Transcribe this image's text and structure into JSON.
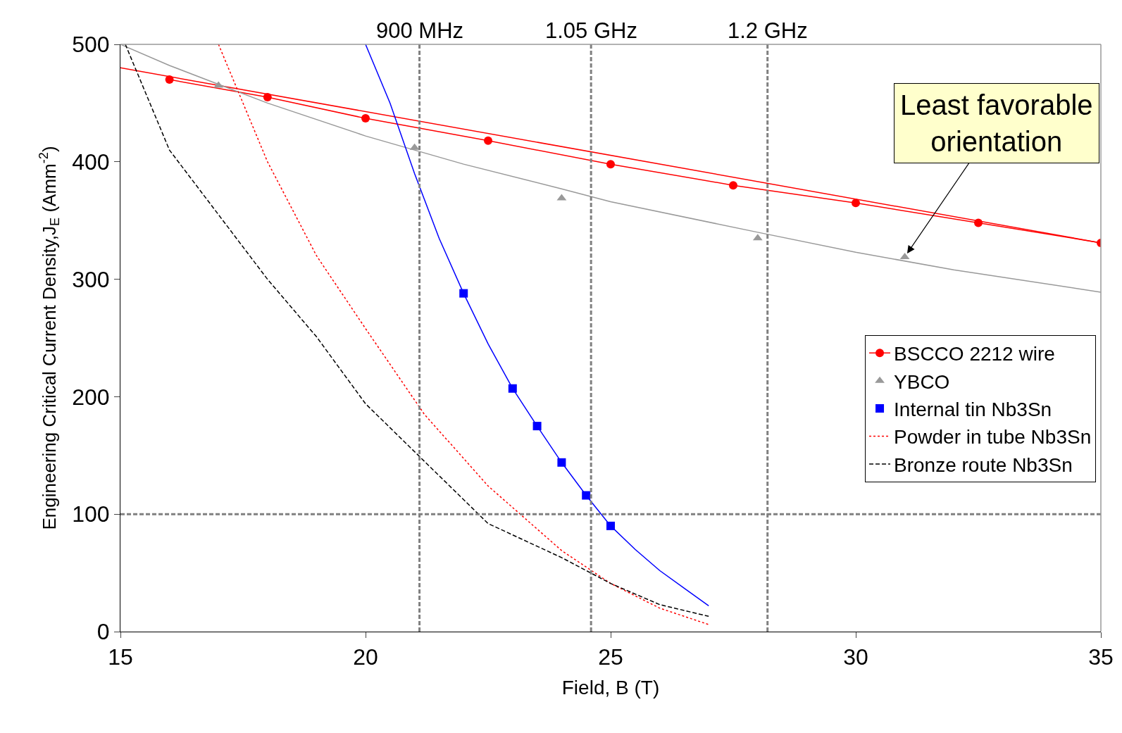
{
  "chart_data": {
    "type": "line",
    "xlabel": "Field, B (T)",
    "ylabel": "Engineering Critical Current Density,J$_{E}$ (Amm$^{-2}$)",
    "xlim": [
      15,
      35
    ],
    "xticks": [
      15,
      20,
      25,
      30,
      35
    ],
    "ylim": [
      0,
      500
    ],
    "yticks": [
      0,
      100,
      200,
      300,
      400,
      500
    ],
    "legend": "right",
    "series": [
      {
        "color": "#ff0000",
        "line_style": "solid",
        "x": [
          15,
          35
        ],
        "values": [
          480,
          331
        ]
      },
      {
        "name": "BSCCO 2212 wire",
        "color": "#ff0000",
        "line_style": "solid",
        "marker": "circle",
        "x": [
          16,
          18,
          20,
          22.5,
          25,
          27.5,
          30,
          32.5,
          35
        ],
        "values": [
          470,
          455,
          437,
          418,
          398,
          380,
          365,
          348,
          331
        ]
      },
      {
        "color": "#999999",
        "line_style": "solid",
        "x": [
          15,
          16,
          17,
          18,
          20,
          22,
          24,
          25,
          28,
          30,
          32,
          35
        ],
        "values": [
          500,
          482,
          466,
          450,
          422,
          398,
          377,
          366,
          340,
          323,
          308,
          289
        ]
      },
      {
        "type": "scatter",
        "name": "YBCO",
        "color": "#999999",
        "marker": "triangle",
        "x": [
          17,
          21,
          24,
          28,
          31
        ],
        "values": [
          465,
          412,
          369,
          335,
          319
        ]
      },
      {
        "color": "#0000ff",
        "line_style": "solid",
        "x": [
          20,
          20.5,
          21,
          21.5,
          22,
          22.5,
          23,
          23.5,
          24,
          24.5,
          25,
          25.5,
          26,
          26.5,
          27
        ],
        "values": [
          500,
          450,
          390,
          335,
          288,
          245,
          207,
          175,
          144,
          116,
          90,
          70,
          52,
          37,
          22
        ]
      },
      {
        "type": "scatter",
        "name": "Internal tin Nb3Sn",
        "color": "#0000ff",
        "marker": "square",
        "x": [
          22,
          23,
          23.5,
          24,
          24.5,
          25
        ],
        "values": [
          288,
          207,
          175,
          144,
          116,
          90
        ]
      },
      {
        "name": "Powder in tube Nb3Sn",
        "color": "#ff0000",
        "line_style": "dotted",
        "x": [
          17,
          18,
          19,
          20,
          21.2,
          22.5,
          24,
          25,
          26,
          27
        ],
        "values": [
          500,
          400,
          320,
          258,
          185,
          124,
          69,
          41,
          20,
          6
        ]
      },
      {
        "name": "Bronze route Nb3Sn",
        "color": "#000000",
        "line_style": "dashed",
        "x": [
          15.1,
          16,
          17,
          18,
          19,
          20,
          21.2,
          22.5,
          24,
          25,
          26,
          27
        ],
        "values": [
          500,
          410,
          355,
          300,
          251,
          194,
          145,
          92,
          63,
          41,
          23,
          13
        ]
      }
    ],
    "ref_lines": [
      {
        "axis": "x",
        "value": 21.1,
        "label": "900 MHz",
        "color": "#808080",
        "line_style": "dashed"
      },
      {
        "axis": "x",
        "value": 24.6,
        "label": "1.05 GHz",
        "color": "#808080",
        "line_style": "dashed"
      },
      {
        "axis": "x",
        "value": 28.2,
        "label": "1.2 GHz",
        "color": "#808080",
        "line_style": "dashed"
      },
      {
        "axis": "y",
        "value": 100,
        "color": "#808080",
        "line_style": "dashed"
      }
    ],
    "annotations": [
      {
        "text": "Least favorable\norientation",
        "x": 31,
        "y": 319
      }
    ]
  }
}
